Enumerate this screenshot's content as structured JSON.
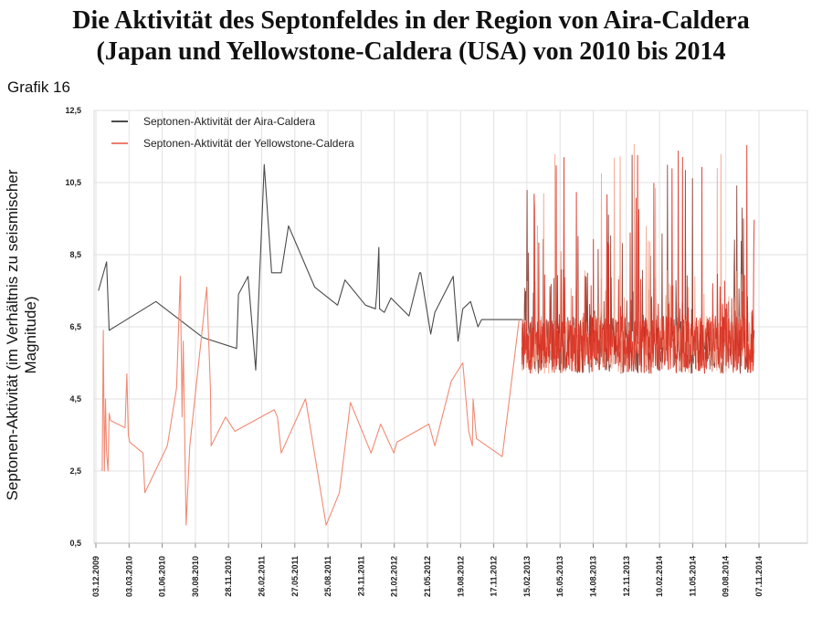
{
  "title_line1": "Die Aktivität des Septonfeldes in der Region von Aira-Caldera",
  "title_line2": "(Japan und Yellowstone-Caldera (USA) von 2010 bis 2014",
  "subtitle": "Grafik 16",
  "chart_data": {
    "type": "line",
    "title": "Die Aktivität des Septonfeldes in der Region von Aira-Caldera (Japan und Yellowstone-Caldera (USA) von 2010 bis 2014",
    "ylabel": "Septonen-Aktivität (im Verhältnis zu seismischer Magnitude)",
    "xlabel": "",
    "ylim": [
      0.5,
      12.5
    ],
    "y_ticks": [
      "0,5",
      "2,5",
      "4,5",
      "6,5",
      "8,5",
      "10,5",
      "12,5"
    ],
    "y_tick_values": [
      0.5,
      2.5,
      4.5,
      6.5,
      8.5,
      10.5,
      12.5
    ],
    "x_ticks": [
      "03.12.2009",
      "03.03.2010",
      "01.06.2010",
      "30.08.2010",
      "28.11.2010",
      "26.02.2011",
      "27.05.2011",
      "25.08.2011",
      "23.11.2011",
      "21.02.2012",
      "21.05.2012",
      "19.08.2012",
      "17.11.2012",
      "15.02.2013",
      "16.05.2013",
      "14.08.2013",
      "12.11.2013",
      "10.02.2014",
      "11.05.2014",
      "09.08.2014",
      "07.11.2014"
    ],
    "grid": true,
    "legend_position": "top-left",
    "series": [
      {
        "name": "Septonen-Aktivität der Aira-Caldera",
        "color": "#333333",
        "x": [
          "2009-12-10",
          "2010-01-01",
          "2010-01-08",
          "2010-05-15",
          "2010-09-20",
          "2010-12-20",
          "2010-12-25",
          "2011-01-20",
          "2011-02-10",
          "2011-03-05",
          "2011-03-25",
          "2011-04-20",
          "2011-05-10",
          "2011-07-20",
          "2011-09-20",
          "2011-10-10",
          "2011-12-05",
          "2012-01-01",
          "2012-01-05",
          "2012-01-10",
          "2012-01-12",
          "2012-01-25",
          "2012-02-12",
          "2012-04-01",
          "2012-04-30",
          "2012-05-03",
          "2012-05-30",
          "2012-06-10",
          "2012-07-30",
          "2012-08-12",
          "2012-08-25",
          "2012-09-15",
          "2012-10-05",
          "2012-10-15",
          "2012-12-15",
          "2013-02-01"
        ],
        "values": [
          7.5,
          8.3,
          6.4,
          7.2,
          6.2,
          5.9,
          7.4,
          7.9,
          5.3,
          11.0,
          8.0,
          8.0,
          9.3,
          7.6,
          7.1,
          7.8,
          7.1,
          7.0,
          7.5,
          8.7,
          7.0,
          6.9,
          7.3,
          6.8,
          8.0,
          8.0,
          6.3,
          6.9,
          7.9,
          6.1,
          7.0,
          7.2,
          6.5,
          6.7,
          6.7,
          6.7
        ]
      },
      {
        "name": "Septonen-Aktivität der Yellowstone-Caldera",
        "color": "#e8533f",
        "x": [
          "2009-12-20",
          "2009-12-23",
          "2009-12-26",
          "2009-12-29",
          "2010-01-01",
          "2010-01-05",
          "2010-01-08",
          "2010-01-12",
          "2010-02-20",
          "2010-02-25",
          "2010-03-01",
          "2010-03-05",
          "2010-04-10",
          "2010-04-15",
          "2010-06-15",
          "2010-07-10",
          "2010-07-20",
          "2010-07-25",
          "2010-07-28",
          "2010-08-05",
          "2010-08-15",
          "2010-09-30",
          "2010-10-10",
          "2010-10-12",
          "2010-11-20",
          "2010-12-15",
          "2011-04-01",
          "2011-04-10",
          "2011-04-20",
          "2011-06-25",
          "2011-07-05",
          "2011-08-20",
          "2011-09-25",
          "2011-10-25",
          "2011-12-20",
          "2012-01-15",
          "2012-02-20",
          "2012-02-28",
          "2012-05-25",
          "2012-06-10",
          "2012-07-25",
          "2012-08-25",
          "2012-09-10",
          "2012-09-20",
          "2012-09-22",
          "2012-10-01",
          "2012-12-10",
          "2013-01-25"
        ],
        "values": [
          2.5,
          6.4,
          2.5,
          4.5,
          3.0,
          2.5,
          4.1,
          3.9,
          3.7,
          5.2,
          3.5,
          3.3,
          3.0,
          1.9,
          3.2,
          4.8,
          7.9,
          4.0,
          6.1,
          1.0,
          3.2,
          7.6,
          4.8,
          3.2,
          4.0,
          3.6,
          4.2,
          4.0,
          3.0,
          4.5,
          3.9,
          1.0,
          1.9,
          4.4,
          3.0,
          3.8,
          3.0,
          3.3,
          3.8,
          3.2,
          5.0,
          5.5,
          3.6,
          3.2,
          4.5,
          3.4,
          2.9,
          6.7
        ]
      }
    ]
  }
}
